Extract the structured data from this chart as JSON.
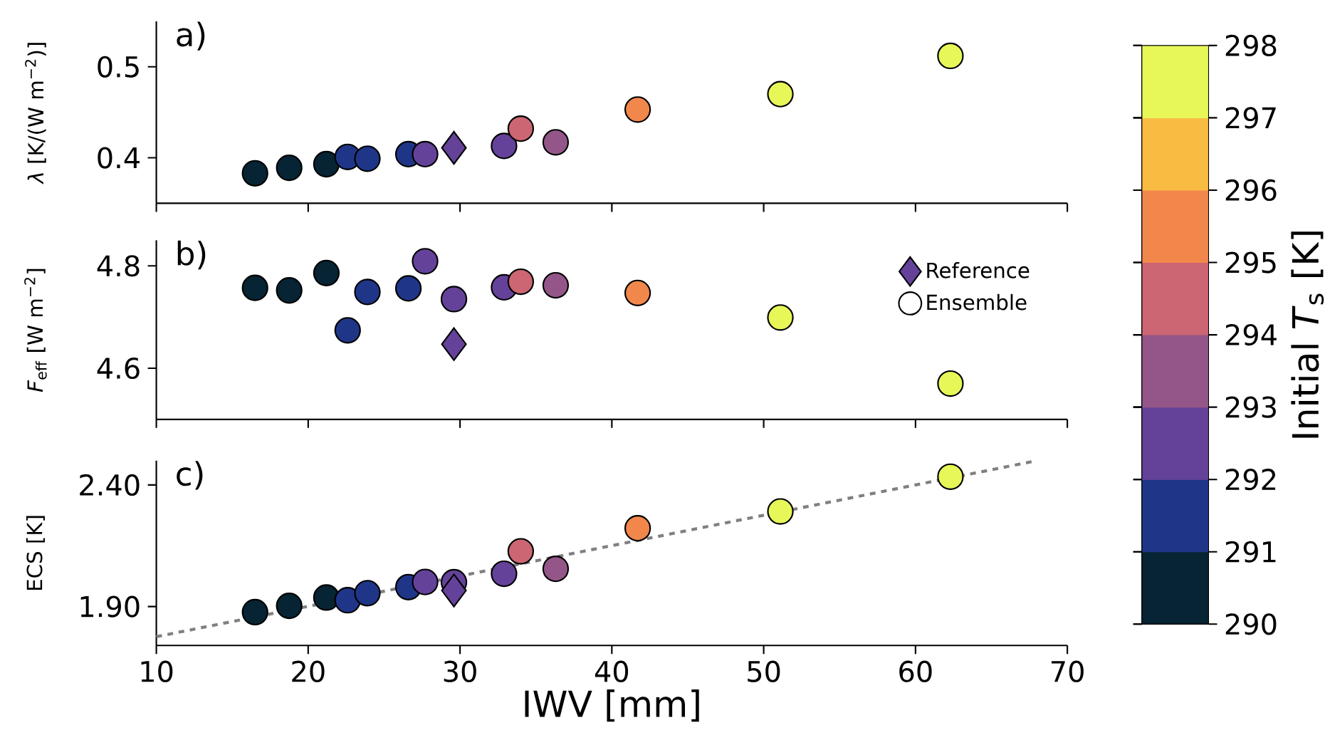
{
  "chart_data": [
    {
      "type": "scatter",
      "annotations": [
        "a)"
      ],
      "ylabel": "*λ* [K/(W m$^{−2}$)]",
      "xlim": [
        10,
        70
      ],
      "xticks": [
        10,
        20,
        30,
        40,
        50,
        60,
        70
      ],
      "ylim": [
        0.35,
        0.55
      ],
      "yticks": [
        0.4,
        0.5
      ],
      "tick_labels": "y",
      "clim": [
        290,
        298
      ],
      "cticks": [
        290,
        291,
        292,
        293,
        294,
        295,
        296,
        297,
        298
      ],
      "clabel": "Initial *T*$_{s}$ [K]",
      "series": [
        {
          "type": "scatter",
          "marker": "diamond",
          "x": [
            29.6
          ],
          "values": [
            0.411
          ],
          "colors": [
            "#654299"
          ]
        },
        {
          "type": "scatter",
          "marker": "circle",
          "x": [
            16.5,
            18.75,
            21.2,
            22.6,
            23.9,
            26.6,
            27.7,
            29.6,
            32.9,
            34.0,
            36.3,
            41.7,
            51.1,
            62.3
          ],
          "values": [
            0.383,
            0.389,
            0.393,
            0.401,
            0.399,
            0.404,
            0.404,
            null,
            0.413,
            0.432,
            0.417,
            0.453,
            0.47,
            0.512
          ],
          "colors": [
            "#062433",
            "#062433",
            "#062433",
            "#1f3688",
            "#1f3688",
            "#1f3688",
            "#654299",
            "#654299",
            "#654299",
            "#cc6673",
            "#945688",
            "#f2874c",
            "#e7f758",
            "#e7f758"
          ]
        }
      ]
    },
    {
      "type": "scatter",
      "annotations": [
        "b)"
      ],
      "ylabel": "*F*$_{eff}$ [W m$^{−2}$]",
      "xlim": [
        10,
        70
      ],
      "xticks": [
        10,
        20,
        30,
        40,
        50,
        60,
        70
      ],
      "ylim": [
        4.5,
        4.85
      ],
      "yticks": [
        4.6,
        4.8
      ],
      "tick_labels": "y",
      "legend": "top right",
      "series": [
        {
          "type": "scatter",
          "name": "Reference",
          "marker": "diamond",
          "x": [
            29.6
          ],
          "values": [
            4.647
          ],
          "colors": [
            "#654299"
          ]
        },
        {
          "type": "scatter",
          "name": "Ensemble",
          "marker": "circle",
          "x": [
            16.5,
            18.75,
            21.2,
            22.6,
            23.9,
            26.6,
            27.7,
            29.6,
            32.9,
            34.0,
            36.3,
            41.7,
            51.1,
            62.3
          ],
          "values": [
            4.757,
            4.752,
            4.786,
            4.674,
            4.749,
            4.756,
            4.809,
            4.735,
            4.758,
            4.769,
            4.762,
            4.747,
            4.699,
            4.57
          ],
          "colors": [
            "#062433",
            "#062433",
            "#062433",
            "#1f3688",
            "#1f3688",
            "#1f3688",
            "#654299",
            "#654299",
            "#654299",
            "#cc6673",
            "#945688",
            "#f2874c",
            "#e7f758",
            "#e7f758"
          ]
        }
      ]
    },
    {
      "type": "scatter",
      "annotations": [
        "c)"
      ],
      "ylabel": "ECS [K]",
      "xlabel": "IWV [mm]",
      "xlim": [
        10,
        70
      ],
      "xticks": [
        10,
        20,
        30,
        40,
        50,
        60,
        70
      ],
      "ylim": [
        1.74,
        2.5
      ],
      "yticks": [
        {
          "value": 1.9,
          "label": "1.90"
        },
        {
          "value": 2.4,
          "label": "2.40"
        }
      ],
      "series": [
        {
          "type": "line",
          "color": "#808080",
          "line_style": "dashed",
          "x": [
            10,
            68
          ],
          "values": [
            1.776,
            2.5
          ]
        },
        {
          "type": "scatter",
          "marker": "diamond",
          "x": [
            29.6
          ],
          "values": [
            1.966
          ],
          "colors": [
            "#654299"
          ]
        },
        {
          "type": "scatter",
          "marker": "circle",
          "x": [
            16.5,
            18.75,
            21.2,
            22.6,
            23.9,
            26.6,
            27.7,
            29.6,
            32.9,
            34.0,
            36.3,
            41.7,
            51.1,
            62.3
          ],
          "values": [
            1.877,
            1.903,
            1.937,
            1.926,
            1.955,
            1.98,
            2.001,
            2.0,
            2.035,
            2.127,
            2.055,
            2.222,
            2.291,
            2.434
          ],
          "colors": [
            "#062433",
            "#062433",
            "#062433",
            "#1f3688",
            "#1f3688",
            "#1f3688",
            "#654299",
            "#654299",
            "#654299",
            "#cc6673",
            "#945688",
            "#f2874c",
            "#e7f758",
            "#e7f758"
          ]
        }
      ]
    }
  ]
}
